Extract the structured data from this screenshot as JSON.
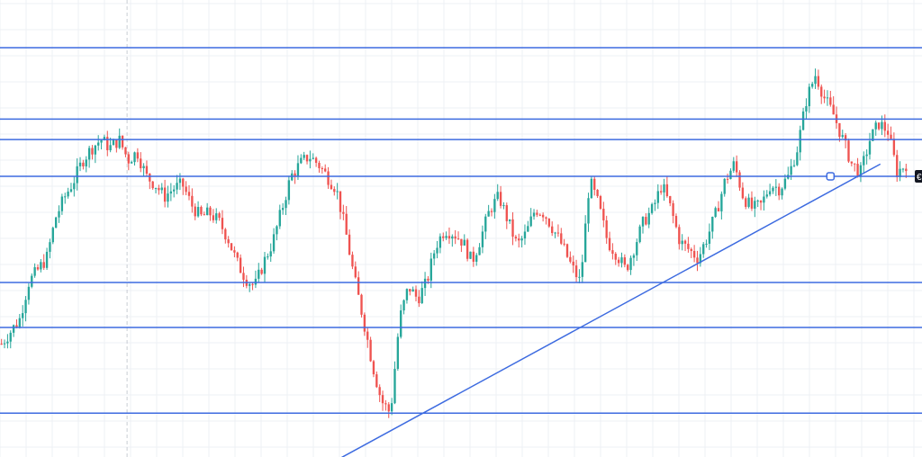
{
  "chart_data": {
    "type": "candlestick",
    "grid": true,
    "colors": {
      "up": "#26a69a",
      "down": "#ef5350",
      "drawing": "#3d6be0",
      "background": "#ffffff",
      "grid": "#eef0f4"
    },
    "axis_labels_visible": false,
    "price_scale": {
      "top": 1.0,
      "bottom": 0.0,
      "direction": "normalized-up"
    },
    "horizontal_levels": [
      0.945,
      0.77,
      0.72,
      0.63,
      0.37,
      0.26,
      0.05
    ],
    "dashed_level": 0.63,
    "trendline": {
      "start": [
        0.39,
        0.0
      ],
      "end": [
        0.97,
        0.66
      ]
    },
    "crosshair_x": 0.14,
    "path": [
      [
        0.0,
        0.22
      ],
      [
        0.02,
        0.28
      ],
      [
        0.03,
        0.37
      ],
      [
        0.04,
        0.4
      ],
      [
        0.05,
        0.43
      ],
      [
        0.06,
        0.53
      ],
      [
        0.07,
        0.58
      ],
      [
        0.08,
        0.62
      ],
      [
        0.09,
        0.67
      ],
      [
        0.1,
        0.7
      ],
      [
        0.11,
        0.72
      ],
      [
        0.12,
        0.7
      ],
      [
        0.13,
        0.72
      ],
      [
        0.14,
        0.67
      ],
      [
        0.15,
        0.69
      ],
      [
        0.16,
        0.63
      ],
      [
        0.17,
        0.61
      ],
      [
        0.18,
        0.58
      ],
      [
        0.19,
        0.6
      ],
      [
        0.2,
        0.61
      ],
      [
        0.21,
        0.56
      ],
      [
        0.22,
        0.53
      ],
      [
        0.23,
        0.54
      ],
      [
        0.24,
        0.52
      ],
      [
        0.25,
        0.48
      ],
      [
        0.26,
        0.42
      ],
      [
        0.27,
        0.38
      ],
      [
        0.28,
        0.36
      ],
      [
        0.29,
        0.42
      ],
      [
        0.3,
        0.47
      ],
      [
        0.31,
        0.55
      ],
      [
        0.32,
        0.63
      ],
      [
        0.33,
        0.66
      ],
      [
        0.34,
        0.68
      ],
      [
        0.35,
        0.66
      ],
      [
        0.36,
        0.63
      ],
      [
        0.37,
        0.6
      ],
      [
        0.38,
        0.5
      ],
      [
        0.39,
        0.38
      ],
      [
        0.4,
        0.28
      ],
      [
        0.41,
        0.17
      ],
      [
        0.42,
        0.08
      ],
      [
        0.43,
        0.05
      ],
      [
        0.44,
        0.28
      ],
      [
        0.45,
        0.36
      ],
      [
        0.46,
        0.33
      ],
      [
        0.47,
        0.37
      ],
      [
        0.48,
        0.46
      ],
      [
        0.49,
        0.5
      ],
      [
        0.5,
        0.49
      ],
      [
        0.51,
        0.47
      ],
      [
        0.52,
        0.42
      ],
      [
        0.53,
        0.48
      ],
      [
        0.54,
        0.55
      ],
      [
        0.55,
        0.58
      ],
      [
        0.56,
        0.52
      ],
      [
        0.57,
        0.46
      ],
      [
        0.58,
        0.49
      ],
      [
        0.59,
        0.55
      ],
      [
        0.6,
        0.54
      ],
      [
        0.61,
        0.5
      ],
      [
        0.62,
        0.46
      ],
      [
        0.63,
        0.41
      ],
      [
        0.64,
        0.37
      ],
      [
        0.65,
        0.62
      ],
      [
        0.66,
        0.56
      ],
      [
        0.67,
        0.47
      ],
      [
        0.68,
        0.44
      ],
      [
        0.69,
        0.4
      ],
      [
        0.7,
        0.46
      ],
      [
        0.71,
        0.52
      ],
      [
        0.72,
        0.55
      ],
      [
        0.73,
        0.61
      ],
      [
        0.74,
        0.55
      ],
      [
        0.75,
        0.47
      ],
      [
        0.76,
        0.45
      ],
      [
        0.77,
        0.43
      ],
      [
        0.78,
        0.48
      ],
      [
        0.79,
        0.54
      ],
      [
        0.8,
        0.62
      ],
      [
        0.81,
        0.66
      ],
      [
        0.82,
        0.58
      ],
      [
        0.83,
        0.55
      ],
      [
        0.84,
        0.56
      ],
      [
        0.85,
        0.61
      ],
      [
        0.86,
        0.6
      ],
      [
        0.87,
        0.63
      ],
      [
        0.88,
        0.7
      ],
      [
        0.89,
        0.82
      ],
      [
        0.9,
        0.88
      ],
      [
        0.91,
        0.82
      ],
      [
        0.92,
        0.78
      ],
      [
        0.93,
        0.72
      ],
      [
        0.94,
        0.66
      ],
      [
        0.95,
        0.64
      ],
      [
        0.96,
        0.72
      ],
      [
        0.97,
        0.76
      ],
      [
        0.98,
        0.74
      ],
      [
        0.99,
        0.64
      ],
      [
        1.0,
        0.66
      ]
    ],
    "volatility": 0.035,
    "candle_count": 300,
    "price_label": "€"
  }
}
